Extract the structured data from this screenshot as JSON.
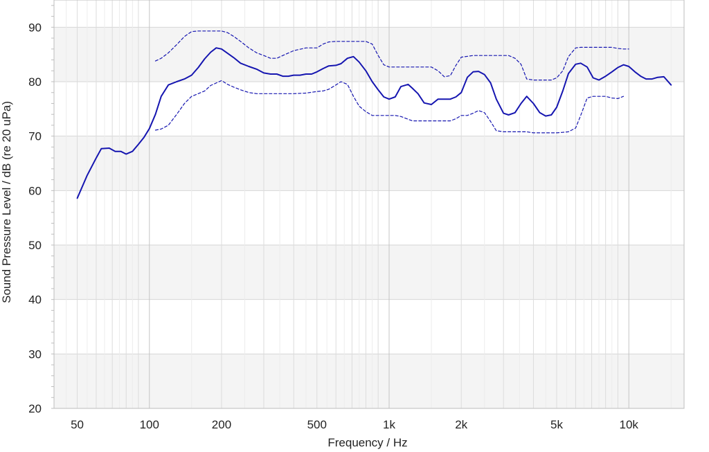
{
  "chart_data": {
    "type": "line",
    "xlabel": "Frequency / Hz",
    "ylabel": "Sound Pressure Level / dB (re 20 uPa)",
    "xscale": "log",
    "xlim": [
      40,
      17000
    ],
    "ylim": [
      20,
      95
    ],
    "grid": true,
    "legend": "none",
    "x_ticks": [
      {
        "value": 50,
        "label": "50"
      },
      {
        "value": 100,
        "label": "100"
      },
      {
        "value": 200,
        "label": "200"
      },
      {
        "value": 500,
        "label": "500"
      },
      {
        "value": 1000,
        "label": "1k"
      },
      {
        "value": 2000,
        "label": "2k"
      },
      {
        "value": 5000,
        "label": "5k"
      },
      {
        "value": 10000,
        "label": "10k"
      }
    ],
    "y_ticks": [
      20,
      30,
      40,
      50,
      60,
      70,
      80,
      90
    ],
    "colors": {
      "line": "#1515b0",
      "grid": "#d6d6d6",
      "band": "#f4f4f4"
    },
    "series": [
      {
        "style": "solid",
        "x": [
          50,
          55,
          60,
          63,
          68,
          72,
          76,
          80,
          85,
          90,
          95,
          100,
          106,
          112,
          120,
          130,
          140,
          150,
          160,
          170,
          180,
          190,
          200,
          212,
          225,
          240,
          260,
          280,
          300,
          320,
          340,
          360,
          380,
          400,
          425,
          450,
          475,
          500,
          530,
          560,
          600,
          630,
          670,
          710,
          750,
          800,
          850,
          900,
          950,
          1000,
          1060,
          1120,
          1200,
          1250,
          1320,
          1400,
          1500,
          1600,
          1700,
          1800,
          1900,
          2000,
          2120,
          2240,
          2360,
          2500,
          2650,
          2800,
          3000,
          3150,
          3350,
          3550,
          3750,
          4000,
          4250,
          4500,
          4750,
          5000,
          5300,
          5600,
          6000,
          6300,
          6700,
          7100,
          7500,
          8000,
          8500,
          9000,
          9500,
          10000,
          10600,
          11200,
          11800,
          12500,
          13200,
          14000,
          15000
        ],
        "y": [
          58.6,
          62.8,
          66.0,
          67.7,
          67.8,
          67.2,
          67.2,
          66.7,
          67.2,
          68.5,
          69.8,
          71.4,
          74.0,
          77.3,
          79.4,
          80.0,
          80.5,
          81.2,
          82.6,
          84.2,
          85.4,
          86.2,
          86.0,
          85.2,
          84.4,
          83.4,
          82.8,
          82.3,
          81.6,
          81.4,
          81.4,
          81.0,
          81.0,
          81.2,
          81.2,
          81.4,
          81.4,
          81.8,
          82.4,
          82.9,
          83.0,
          83.3,
          84.3,
          84.6,
          83.6,
          82.0,
          80.0,
          78.5,
          77.2,
          76.8,
          77.2,
          79.1,
          79.5,
          78.8,
          77.8,
          76.1,
          75.8,
          76.8,
          76.8,
          76.8,
          77.2,
          78.0,
          80.8,
          81.8,
          81.9,
          81.3,
          79.8,
          76.8,
          74.2,
          73.9,
          74.3,
          76.0,
          77.3,
          76.0,
          74.3,
          73.7,
          73.9,
          75.3,
          78.3,
          81.5,
          83.2,
          83.4,
          82.7,
          80.7,
          80.3,
          81.0,
          81.8,
          82.6,
          83.1,
          82.8,
          81.8,
          81.0,
          80.5,
          80.5,
          80.8,
          80.9,
          79.4
        ]
      },
      {
        "style": "dashed",
        "x": [
          106,
          112,
          120,
          130,
          140,
          150,
          160,
          170,
          180,
          200,
          212,
          225,
          240,
          260,
          280,
          300,
          320,
          340,
          360,
          400,
          450,
          500,
          530,
          560,
          600,
          630,
          670,
          710,
          750,
          800,
          850,
          900,
          950,
          1000,
          1120,
          1250,
          1400,
          1500,
          1600,
          1700,
          1800,
          1900,
          2000,
          2240,
          2500,
          2800,
          3000,
          3150,
          3350,
          3550,
          3750,
          4000,
          4250,
          4500,
          4750,
          5000,
          5300,
          5600,
          6000,
          6300,
          6700,
          7100,
          7500,
          8000,
          8500,
          9000,
          9500,
          10000
        ],
        "y": [
          83.8,
          84.3,
          85.3,
          86.8,
          88.3,
          89.2,
          89.3,
          89.3,
          89.3,
          89.3,
          89.0,
          88.3,
          87.4,
          86.2,
          85.3,
          84.8,
          84.3,
          84.3,
          84.8,
          85.7,
          86.2,
          86.2,
          86.9,
          87.3,
          87.4,
          87.4,
          87.4,
          87.4,
          87.4,
          87.4,
          86.9,
          84.8,
          83.1,
          82.7,
          82.7,
          82.7,
          82.7,
          82.7,
          82.0,
          80.9,
          81.1,
          83.0,
          84.5,
          84.8,
          84.8,
          84.8,
          84.8,
          84.8,
          84.3,
          83.2,
          80.5,
          80.3,
          80.3,
          80.3,
          80.3,
          80.7,
          82.0,
          84.6,
          86.2,
          86.3,
          86.3,
          86.3,
          86.3,
          86.3,
          86.3,
          86.1,
          86.0,
          86.0
        ]
      },
      {
        "style": "dashed",
        "x": [
          106,
          112,
          120,
          130,
          140,
          150,
          160,
          170,
          180,
          200,
          212,
          225,
          240,
          260,
          280,
          300,
          320,
          340,
          360,
          400,
          450,
          500,
          530,
          560,
          600,
          630,
          670,
          710,
          750,
          800,
          850,
          900,
          950,
          1000,
          1060,
          1120,
          1250,
          1400,
          1500,
          1600,
          1700,
          1800,
          1900,
          2000,
          2120,
          2240,
          2360,
          2500,
          2650,
          2800,
          3000,
          3150,
          3350,
          3550,
          3750,
          4000,
          4250,
          4500,
          4750,
          5000,
          5300,
          5600,
          6000,
          6300,
          6700,
          7100,
          7500,
          8000,
          8500,
          9000,
          9500
        ],
        "y": [
          71.1,
          71.3,
          72.0,
          74.0,
          76.0,
          77.3,
          77.8,
          78.3,
          79.3,
          80.2,
          79.5,
          79.0,
          78.5,
          78.0,
          77.8,
          77.8,
          77.8,
          77.8,
          77.8,
          77.8,
          77.9,
          78.2,
          78.3,
          78.6,
          79.4,
          80.0,
          79.5,
          77.3,
          75.5,
          74.5,
          73.8,
          73.8,
          73.8,
          73.8,
          73.8,
          73.6,
          72.8,
          72.8,
          72.8,
          72.8,
          72.8,
          72.8,
          73.2,
          73.8,
          73.8,
          74.2,
          74.7,
          74.3,
          72.7,
          71.0,
          70.8,
          70.8,
          70.8,
          70.8,
          70.8,
          70.6,
          70.6,
          70.6,
          70.6,
          70.6,
          70.7,
          70.8,
          71.5,
          73.8,
          77.0,
          77.3,
          77.3,
          77.3,
          77.0,
          76.9,
          77.3
        ]
      }
    ]
  }
}
